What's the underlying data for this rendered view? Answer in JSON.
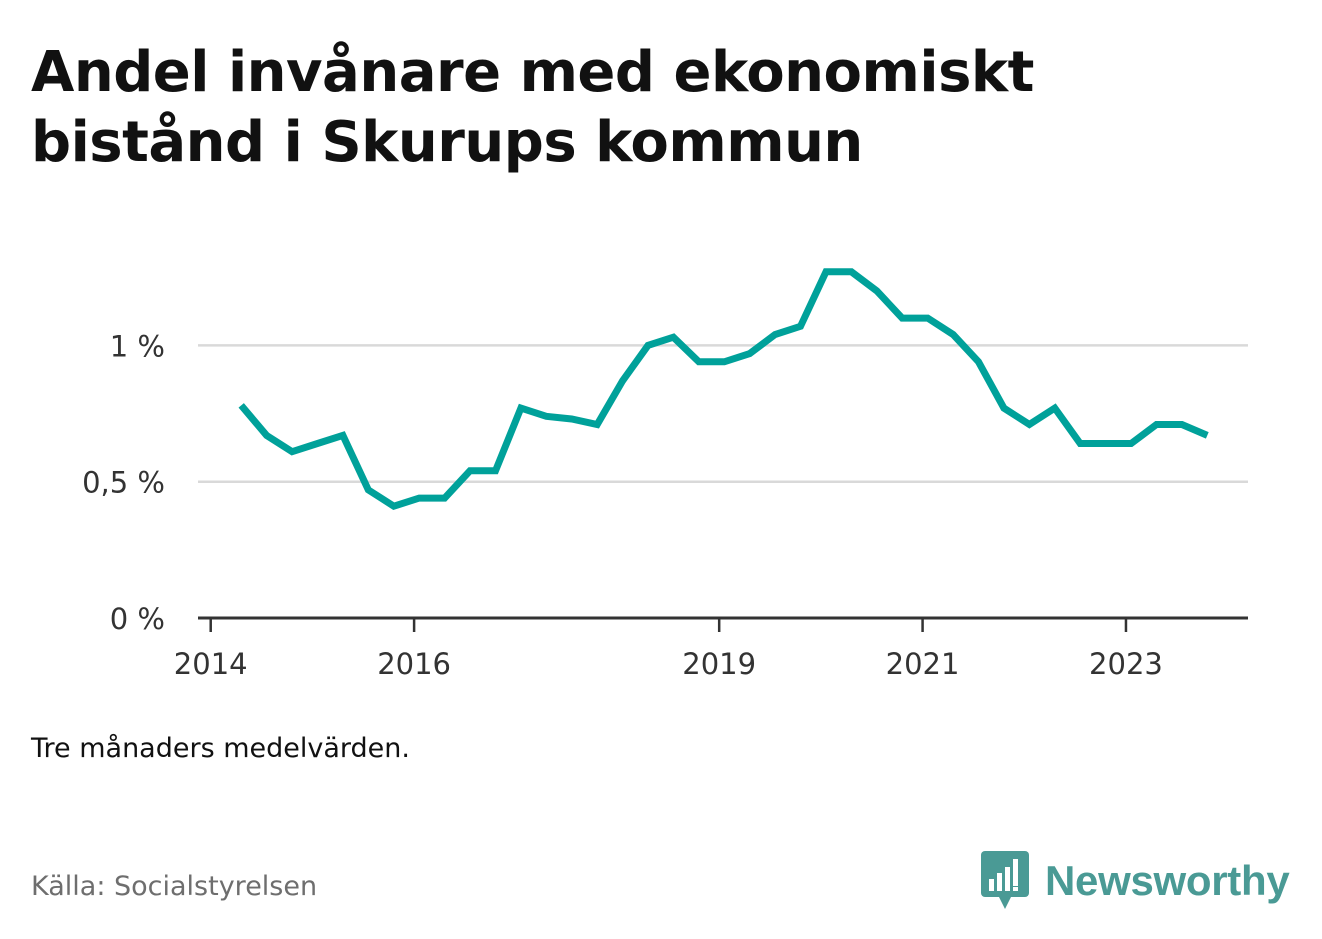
{
  "title": "Andel invånare med ekonomiskt bistånd i Skurups kommun",
  "note": "Tre månaders medelvärden.",
  "source": "Källa: Socialstyrelsen",
  "brand": {
    "name": "Newsworthy",
    "color": "#4a9a95",
    "icon": "newsworthy-logo-icon"
  },
  "colors": {
    "line": "#00a19a",
    "grid": "#d9d9d9",
    "axis": "#333333",
    "text": "#333333"
  },
  "chart_data": {
    "type": "line",
    "title": "Andel invånare med ekonomiskt bistånd i Skurups kommun",
    "xlabel": "",
    "ylabel": "",
    "x_ticks": [
      {
        "label": "2014",
        "year": 2014
      },
      {
        "label": "2016",
        "year": 2016
      },
      {
        "label": "2019",
        "year": 2019
      },
      {
        "label": "2021",
        "year": 2021
      },
      {
        "label": "2023",
        "year": 2023
      }
    ],
    "y_ticks": [
      {
        "label": "0 %",
        "value": 0
      },
      {
        "label": "0,5 %",
        "value": 0.5
      },
      {
        "label": "1 %",
        "value": 1.0
      }
    ],
    "xlim": [
      2013.875,
      2024.2
    ],
    "ylim": [
      0,
      1.35
    ],
    "grid": true,
    "series": [
      {
        "x": [
          2014.3,
          2014.55,
          2014.8,
          2015.05,
          2015.3,
          2015.55,
          2015.8,
          2016.05,
          2016.3,
          2016.55,
          2016.8,
          2017.05,
          2017.3,
          2017.55,
          2017.8,
          2018.05,
          2018.3,
          2018.55,
          2018.8,
          2019.05,
          2019.3,
          2019.55,
          2019.8,
          2020.05,
          2020.3,
          2020.55,
          2020.8,
          2021.05,
          2021.3,
          2021.55,
          2021.8,
          2022.05,
          2022.3,
          2022.55,
          2022.8,
          2023.05,
          2023.3,
          2023.55,
          2023.8
        ],
        "y": [
          0.78,
          0.67,
          0.61,
          0.64,
          0.67,
          0.47,
          0.41,
          0.44,
          0.44,
          0.54,
          0.54,
          0.77,
          0.74,
          0.73,
          0.71,
          0.87,
          1.0,
          1.03,
          0.94,
          0.94,
          0.97,
          1.04,
          1.07,
          1.27,
          1.27,
          1.2,
          1.1,
          1.1,
          1.04,
          0.94,
          0.77,
          0.71,
          0.77,
          0.64,
          0.64,
          0.64,
          0.71,
          0.71,
          0.67
        ]
      }
    ]
  }
}
